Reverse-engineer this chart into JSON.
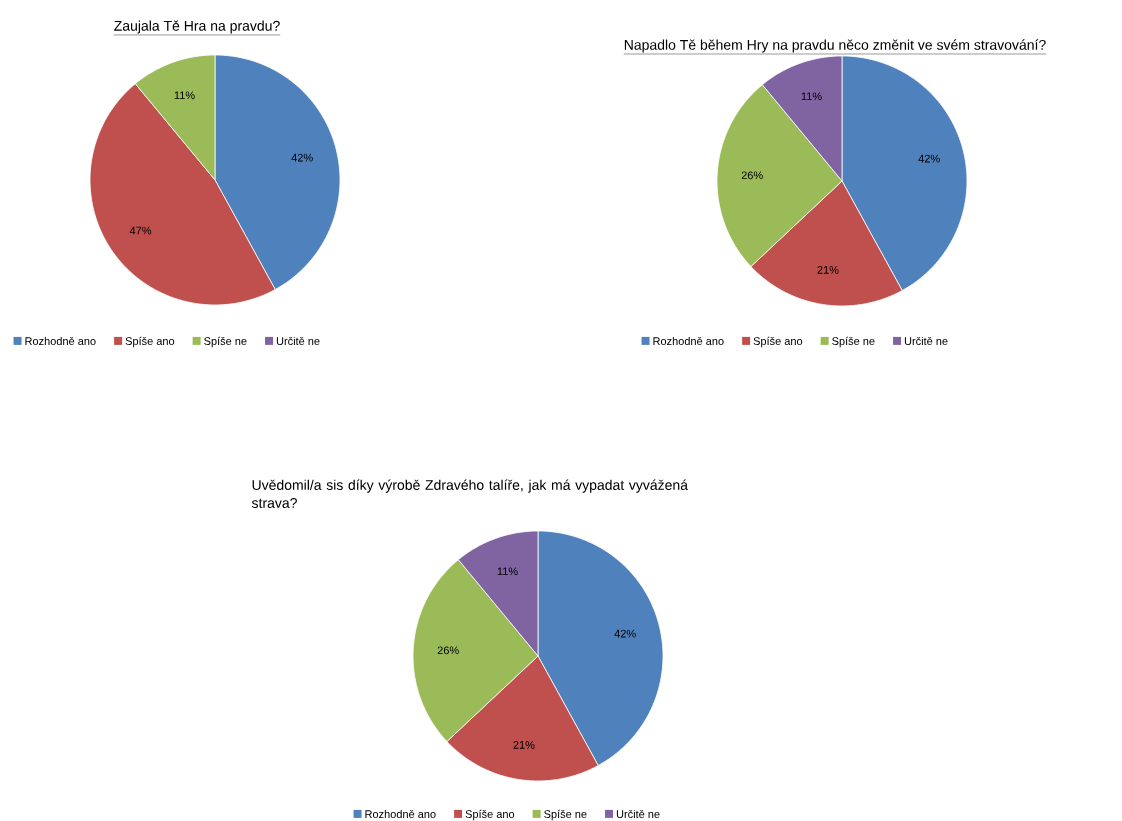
{
  "chart_data": [
    {
      "type": "pie",
      "title": "Zaujala Tě Hra na pravdu?",
      "categories": [
        "Rozhodně ano",
        "Spíše ano",
        "Spíše ne",
        "Určitě ne"
      ],
      "values": [
        42,
        47,
        11,
        0
      ],
      "colors": [
        "#4f81bd",
        "#c0504d",
        "#9bbb59",
        "#8064a2"
      ],
      "value_labels": [
        "42%",
        "47%",
        "11%",
        null
      ],
      "legend": "bottom"
    },
    {
      "type": "pie",
      "title": "Napadlo Tě během Hry na pravdu něco změnit ve svém stravování?",
      "categories": [
        "Rozhodně ano",
        "Spíše ano",
        "Spíše ne",
        "Určitě ne"
      ],
      "values": [
        42,
        21,
        26,
        11
      ],
      "colors": [
        "#4f81bd",
        "#c0504d",
        "#9bbb59",
        "#8064a2"
      ],
      "value_labels": [
        "42%",
        "21%",
        "26%",
        "11%"
      ],
      "legend": "bottom"
    },
    {
      "type": "pie",
      "title": "Uvědomil/a sis díky výrobě Zdravého talíře, jak má vypadat vyvážená strava?",
      "categories": [
        "Rozhodně ano",
        "Spíše ano",
        "Spíše ne",
        "Určitě ne"
      ],
      "values": [
        42,
        21,
        26,
        11
      ],
      "colors": [
        "#4f81bd",
        "#c0504d",
        "#9bbb59",
        "#8064a2"
      ],
      "value_labels": [
        "42%",
        "21%",
        "26%",
        "11%"
      ],
      "legend": "bottom"
    }
  ]
}
